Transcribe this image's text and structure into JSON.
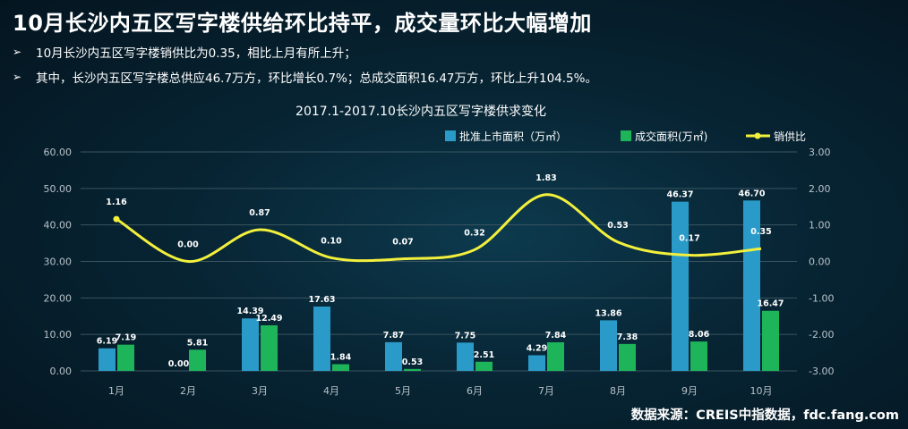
{
  "header": {
    "title": "10月长沙内五区写字楼供给环比持平，成交量环比大幅增加",
    "bullets": [
      "10月长沙内五区写字楼销供比为0.35，相比上月有所上升；",
      "其中，长沙内五区写字楼总供应46.7万方，环比增长0.7%；总成交面积16.47万方，环比上升104.5%。"
    ],
    "bullet_icon": "arrow-bullet-icon"
  },
  "footer": {
    "source": "数据来源：CREIS中指数据，fdc.fang.com"
  },
  "colors": {
    "supply": "#2a9bc8",
    "deal": "#1db45a",
    "ratio": "#f2f03c",
    "grid": "#3a5560"
  },
  "chart_data": {
    "type": "bar",
    "title": "2017.1-2017.10长沙内五区写字楼供求变化",
    "categories": [
      "1月",
      "2月",
      "3月",
      "4月",
      "5月",
      "6月",
      "7月",
      "8月",
      "9月",
      "10月"
    ],
    "series": [
      {
        "name": "批准上市面积（万㎡）",
        "type": "bar",
        "axis": "left",
        "values": [
          6.19,
          0.0,
          14.39,
          17.63,
          7.87,
          7.75,
          4.29,
          13.86,
          46.37,
          46.7
        ]
      },
      {
        "name": "成交面积(万㎡)",
        "type": "bar",
        "axis": "left",
        "values": [
          7.19,
          5.81,
          12.49,
          1.84,
          0.53,
          2.51,
          7.84,
          7.38,
          8.06,
          16.47
        ]
      },
      {
        "name": "销供比",
        "type": "line",
        "axis": "right",
        "values": [
          1.16,
          0.0,
          0.87,
          0.1,
          0.07,
          0.32,
          1.83,
          0.53,
          0.17,
          0.35
        ]
      }
    ],
    "ylim_left": [
      0,
      60
    ],
    "yticks_left": [
      "0.00",
      "10.00",
      "20.00",
      "30.00",
      "40.00",
      "50.00",
      "60.00"
    ],
    "ylim_right": [
      -3,
      3
    ],
    "yticks_right": [
      "-3.00",
      "-2.00",
      "-1.00",
      "0.00",
      "1.00",
      "2.00",
      "3.00"
    ],
    "legend": "top-right",
    "grid": true
  }
}
